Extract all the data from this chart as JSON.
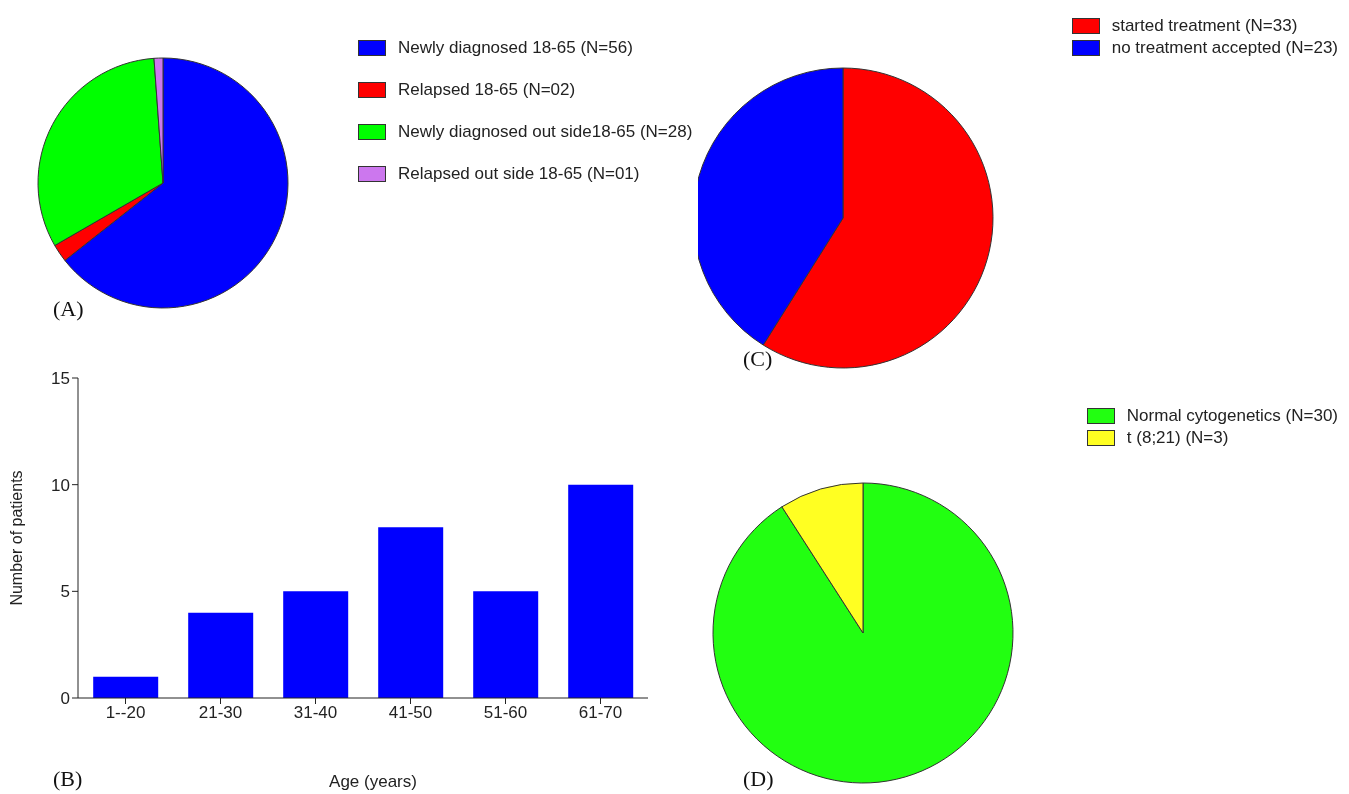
{
  "chart_data": [
    {
      "type": "pie",
      "categories": [
        "Newly diagnosed 18-65  (N=56)",
        "Relapsed 18-65 (N=02)",
        "Newly diagnosed out side18-65 (N=28)",
        "Relapsed out side 18-65 (N=01)"
      ],
      "values": [
        56,
        2,
        28,
        1
      ],
      "colors": [
        "#0000ff",
        "#ff0000",
        "#00ff00",
        "#cc77ee"
      ],
      "legend": "right",
      "annotations": [
        "(A)"
      ]
    },
    {
      "type": "bar",
      "categories": [
        "1--20",
        "21-30",
        "31-40",
        "41-50",
        "51-60",
        "61-70"
      ],
      "values": [
        1,
        4,
        5,
        8,
        5,
        10
      ],
      "color": "#0000ff",
      "ylim": [
        0,
        15
      ],
      "yticks": [
        0,
        5,
        10,
        15
      ],
      "xlabel": "Age (years)",
      "ylabel": "Number of patients",
      "grid": false,
      "annotations": [
        "(B)"
      ]
    },
    {
      "type": "pie",
      "categories": [
        "started treatment (N=33)",
        "no treatment accepted (N=23)"
      ],
      "values": [
        33,
        23
      ],
      "colors": [
        "#ff0000",
        "#0000ff"
      ],
      "legend": "top right",
      "annotations": [
        "(C)"
      ]
    },
    {
      "type": "pie",
      "categories": [
        "Normal cytogenetics (N=30)",
        "t (8;21) (N=3)"
      ],
      "values": [
        30,
        3
      ],
      "colors": [
        "#22ff11",
        "#ffff22"
      ],
      "legend": "top right",
      "annotations": [
        "(D)"
      ]
    }
  ]
}
